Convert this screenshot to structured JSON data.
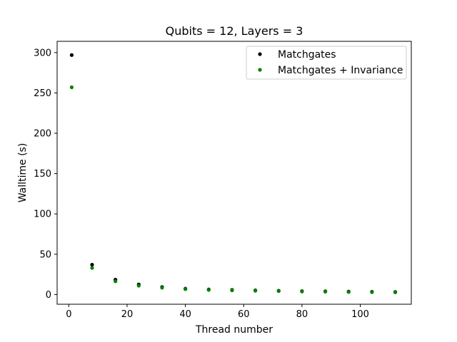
{
  "chart_data": {
    "type": "scatter",
    "title": "Qubits = 12, Layers = 3",
    "xlabel": "Thread number",
    "ylabel": "Walltime (s)",
    "xlim": [
      -4,
      117.5
    ],
    "ylim": [
      -12,
      314
    ],
    "xticks": [
      0,
      20,
      40,
      60,
      80,
      100
    ],
    "yticks": [
      0,
      50,
      100,
      150,
      200,
      250,
      300
    ],
    "grid": false,
    "legend_position": "top-right",
    "series": [
      {
        "name": "Matchgates",
        "color": "#000000",
        "x": [
          1,
          8,
          16,
          24,
          32,
          40,
          48,
          56,
          64,
          72,
          80,
          88,
          96,
          104,
          112
        ],
        "y": [
          297,
          37,
          18.5,
          12.5,
          9.3,
          7.3,
          6.3,
          5.8,
          5.2,
          4.7,
          4.3,
          4.0,
          3.7,
          3.5,
          3.3
        ]
      },
      {
        "name": "Matchgates + Invariance",
        "color": "#008000",
        "x": [
          1,
          8,
          16,
          24,
          32,
          40,
          48,
          56,
          64,
          72,
          80,
          88,
          96,
          104,
          112
        ],
        "y": [
          257,
          33,
          16.5,
          11,
          8.5,
          6.7,
          5.7,
          5.2,
          4.7,
          4.3,
          3.8,
          3.5,
          3.2,
          3.0,
          2.8
        ]
      }
    ]
  }
}
